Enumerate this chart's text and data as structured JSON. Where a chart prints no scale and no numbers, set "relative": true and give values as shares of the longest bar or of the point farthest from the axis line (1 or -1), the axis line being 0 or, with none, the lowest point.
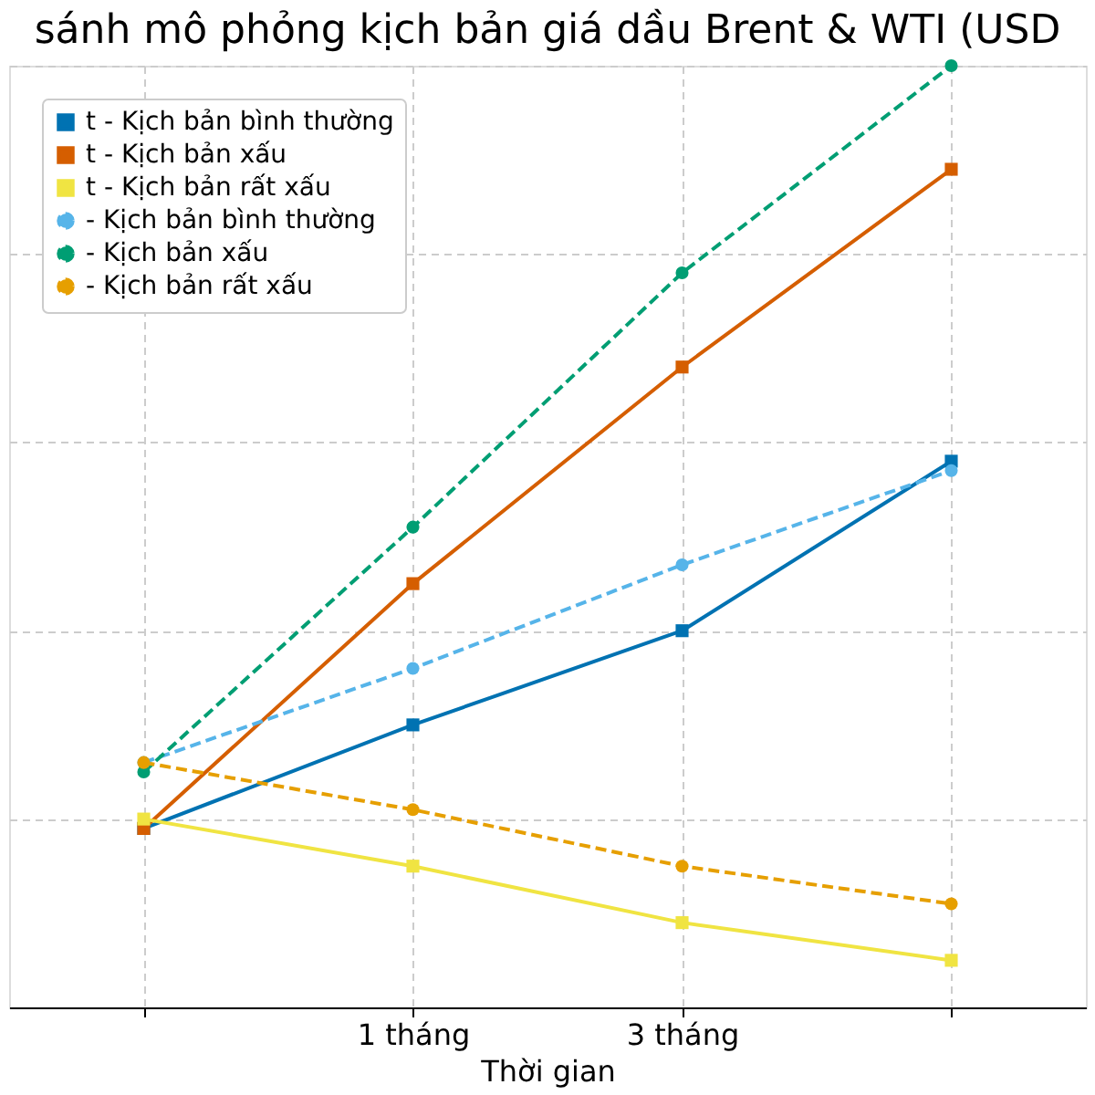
{
  "chart_data": {
    "type": "line",
    "title": "sánh mô phỏng kịch bản giá dầu Brent & WTI (USD",
    "xlabel": "Thời gian",
    "categories": [
      null,
      "1 tháng",
      "3 tháng",
      null
    ],
    "relative": true,
    "grid": true,
    "legend": "top left",
    "series": [
      {
        "name": "t - Kịch bản bình thường",
        "color": "#0072b2",
        "line_style": "solid",
        "marker": "square",
        "values": [
          0.19,
          0.3,
          0.4,
          0.58
        ]
      },
      {
        "name": "t - Kịch bản xấu",
        "color": "#d55e00",
        "line_style": "solid",
        "marker": "square",
        "values": [
          0.19,
          0.45,
          0.68,
          0.89
        ]
      },
      {
        "name": "t - Kịch bản rất xấu",
        "color": "#f0e442",
        "line_style": "solid",
        "marker": "square",
        "values": [
          0.2,
          0.15,
          0.09,
          0.05
        ]
      },
      {
        "name": "- Kịch bản bình thường",
        "color": "#56b4e9",
        "line_style": "dashed",
        "marker": "circle",
        "values": [
          0.26,
          0.36,
          0.47,
          0.57
        ]
      },
      {
        "name": "- Kịch bản xấu",
        "color": "#009e73",
        "line_style": "dashed",
        "marker": "circle",
        "values": [
          0.25,
          0.51,
          0.78,
          1.0
        ]
      },
      {
        "name": "- Kịch bản rất xấu",
        "color": "#e69f00",
        "line_style": "dashed",
        "marker": "circle",
        "values": [
          0.26,
          0.21,
          0.15,
          0.11
        ]
      }
    ]
  }
}
